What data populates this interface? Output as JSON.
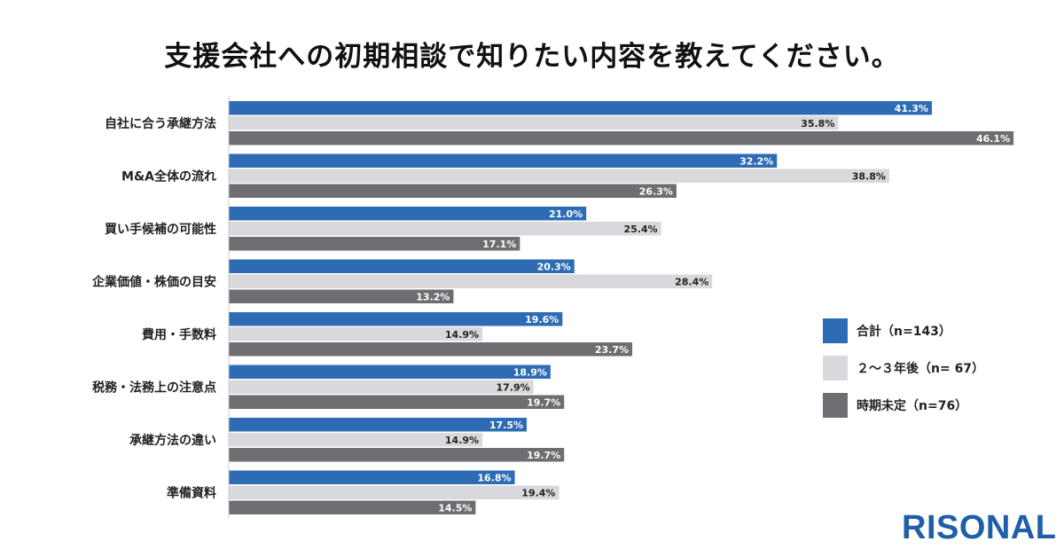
{
  "title": "支援会社への初期相談で知りたい内容を教えてください。",
  "brand": "RISONAL",
  "colors": {
    "series1": "#2d6cb5",
    "series2": "#d9d9dd",
    "series3": "#6e6d72",
    "brand": "#1f5fa8"
  },
  "chart_data": {
    "type": "bar",
    "orientation": "horizontal",
    "categories": [
      "自社に合う承継方法",
      "M&A全体の流れ",
      "買い手候補の可能性",
      "企業価値・株価の目安",
      "費用・手数料",
      "税務・法務上の注意点",
      "承継方法の違い",
      "準備資料"
    ],
    "series": [
      {
        "name": "合計（n=143）",
        "values": [
          41.3,
          32.2,
          21.0,
          20.3,
          19.6,
          18.9,
          17.5,
          16.8
        ],
        "labels": [
          "41.3%",
          "32.2%",
          "21.0%",
          "20.3%",
          "19.6%",
          "18.9%",
          "17.5%",
          "16.8%"
        ]
      },
      {
        "name": "２～３年後（n= 67）",
        "values": [
          35.8,
          38.8,
          25.4,
          28.4,
          14.9,
          17.9,
          14.9,
          19.4
        ],
        "labels": [
          "35.8%",
          "38.8%",
          "25.4%",
          "28.4%",
          "14.9%",
          "17.9%",
          "14.9%",
          "19.4%"
        ]
      },
      {
        "name": "時期未定（n=76）",
        "values": [
          46.1,
          26.3,
          17.1,
          13.2,
          23.7,
          19.7,
          19.7,
          14.5
        ],
        "labels": [
          "46.1%",
          "26.3%",
          "17.1%",
          "13.2%",
          "23.7%",
          "19.7%",
          "19.7%",
          "14.5%"
        ]
      }
    ],
    "legend_position": "right",
    "grid": false
  }
}
